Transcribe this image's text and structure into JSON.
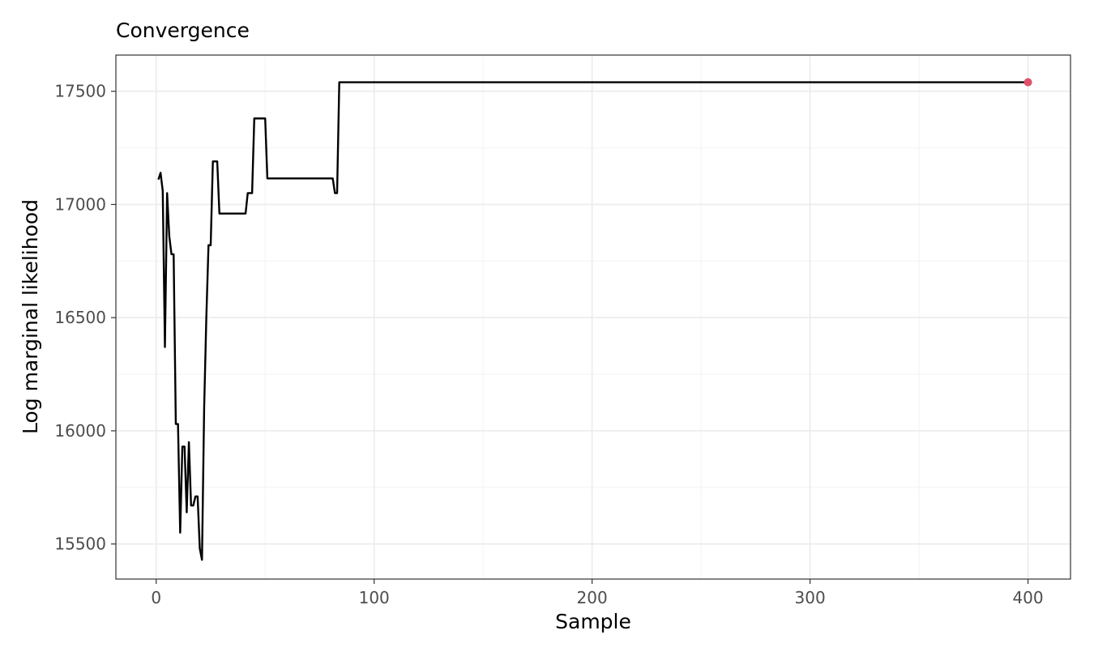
{
  "chart_data": {
    "type": "line",
    "title": "Convergence",
    "xlabel": "Sample",
    "ylabel": "Log marginal likelihood",
    "xlim": [
      -18.5,
      419.5
    ],
    "ylim": [
      15345,
      17660
    ],
    "x_ticks": [
      0,
      100,
      200,
      300,
      400
    ],
    "y_ticks": [
      15500,
      16000,
      16500,
      17000,
      17500
    ],
    "x_tick_labels": [
      "0",
      "100",
      "200",
      "300",
      "400"
    ],
    "y_tick_labels": [
      "15500",
      "16000",
      "16500",
      "17000",
      "17500"
    ],
    "grid": true,
    "line_color": "#000000",
    "highlight_color": "#e0506b",
    "series": [
      {
        "x": [
          1,
          2,
          3,
          4,
          5,
          6,
          7,
          8,
          9,
          10,
          11,
          12,
          13,
          14,
          15,
          16,
          17,
          18,
          19,
          20,
          21,
          22,
          23,
          24,
          25,
          26,
          27,
          28,
          29,
          30,
          35,
          40,
          41,
          42,
          43,
          44,
          45,
          46,
          47,
          48,
          49,
          50,
          51,
          52,
          60,
          70,
          80,
          81,
          82,
          83,
          84,
          85,
          100,
          200,
          300,
          400
        ],
        "y": [
          17110,
          17140,
          17060,
          16370,
          17050,
          16860,
          16780,
          16780,
          16030,
          16030,
          15550,
          15930,
          15930,
          15640,
          15950,
          15670,
          15670,
          15710,
          15710,
          15480,
          15430,
          16100,
          16500,
          16820,
          16820,
          17190,
          17190,
          17190,
          16960,
          16960,
          16960,
          16960,
          16960,
          17050,
          17050,
          17050,
          17380,
          17380,
          17380,
          17380,
          17380,
          17380,
          17115,
          17115,
          17115,
          17115,
          17115,
          17115,
          17050,
          17050,
          17540,
          17540,
          17540,
          17540,
          17540,
          17540
        ]
      }
    ],
    "highlight_point": {
      "x": 400,
      "y": 17540
    }
  }
}
